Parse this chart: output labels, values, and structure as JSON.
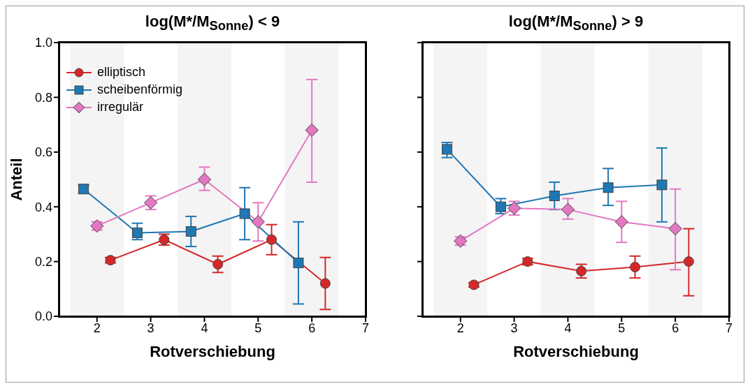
{
  "chart_data": [
    {
      "type": "line",
      "title": "log(M*/M$_{Sonne}$) < 9",
      "xlabel": "Rotverschiebung",
      "ylabel": "Anteil",
      "xlim": [
        1.3,
        7
      ],
      "xticks": [
        2,
        3,
        4,
        5,
        6,
        7
      ],
      "ylim": [
        0,
        1
      ],
      "yticks": [
        {
          "value": 0,
          "label": "0.0"
        },
        {
          "value": 0.2,
          "label": "0.2"
        },
        {
          "value": 0.4,
          "label": "0.4"
        },
        {
          "value": 0.6,
          "label": "0.6"
        },
        {
          "value": 0.8,
          "label": "0.8"
        },
        {
          "value": 1,
          "label": "1.0"
        }
      ],
      "grid": false,
      "legend": "top left",
      "bands": [
        {
          "axis": "x",
          "from": 1.5,
          "to": 2.5,
          "color": "#f4f4f4"
        },
        {
          "axis": "x",
          "from": 3.5,
          "to": 4.5,
          "color": "#f4f4f4"
        },
        {
          "axis": "x",
          "from": 5.5,
          "to": 6.5,
          "color": "#f4f4f4"
        }
      ],
      "series": [
        {
          "name": "elliptisch",
          "color": "#d62728",
          "marker": "circle",
          "x": [
            2.25,
            3.25,
            4.25,
            5.25,
            6.25
          ],
          "values": [
            0.205,
            0.28,
            0.19,
            0.28,
            0.12
          ],
          "errors": [
            0.01,
            0.02,
            [
              0.16,
              0.22
            ],
            [
              0.225,
              0.335
            ],
            [
              0.025,
              0.215
            ]
          ]
        },
        {
          "name": "scheibenförmig",
          "color": "#1f77b4",
          "marker": "square",
          "x": [
            1.75,
            2.75,
            3.75,
            4.75,
            5.75
          ],
          "values": [
            0.465,
            0.305,
            0.31,
            0.375,
            0.195
          ],
          "errors": [
            0.015,
            [
              0.28,
              0.34
            ],
            [
              0.255,
              0.365
            ],
            [
              0.28,
              0.47
            ],
            [
              0.045,
              0.345
            ]
          ]
        },
        {
          "name": "irregulär",
          "color": "#e377c2",
          "marker": "diamond",
          "x": [
            2,
            3,
            4,
            5,
            6
          ],
          "values": [
            0.33,
            0.415,
            0.5,
            0.345,
            0.68
          ],
          "errors": [
            0.015,
            [
              0.39,
              0.44
            ],
            [
              0.46,
              0.545
            ],
            [
              0.275,
              0.415
            ],
            [
              0.49,
              0.865
            ]
          ]
        }
      ]
    },
    {
      "type": "line",
      "title": "log(M*/M$_{Sonne}$) > 9",
      "xlabel": "Rotverschiebung",
      "xlim": [
        1.3,
        7
      ],
      "xticks": [
        2,
        3,
        4,
        5,
        6,
        7
      ],
      "ylim": [
        0,
        1
      ],
      "yticks": [
        0,
        0.2,
        0.4,
        0.6,
        0.8,
        1
      ],
      "grid": false,
      "tick_labels": "x",
      "bands": [
        {
          "axis": "x",
          "from": 1.5,
          "to": 2.5,
          "color": "#f4f4f4"
        },
        {
          "axis": "x",
          "from": 3.5,
          "to": 4.5,
          "color": "#f4f4f4"
        },
        {
          "axis": "x",
          "from": 5.5,
          "to": 6.5,
          "color": "#f4f4f4"
        }
      ],
      "series": [
        {
          "color": "#d62728",
          "marker": "circle",
          "x": [
            2.25,
            3.25,
            4.25,
            5.25,
            6.25
          ],
          "values": [
            0.115,
            0.2,
            0.165,
            0.18,
            0.2
          ],
          "errors": [
            0.008,
            0.012,
            [
              0.14,
              0.19
            ],
            [
              0.14,
              0.22
            ],
            [
              0.075,
              0.32
            ]
          ]
        },
        {
          "color": "#1f77b4",
          "marker": "square",
          "x": [
            1.75,
            2.75,
            3.75,
            4.75,
            5.75
          ],
          "values": [
            0.61,
            0.4,
            0.44,
            0.47,
            0.48
          ],
          "errors": [
            [
              0.58,
              0.635
            ],
            [
              0.375,
              0.43
            ],
            [
              0.39,
              0.49
            ],
            [
              0.405,
              0.54
            ],
            [
              0.345,
              0.615
            ]
          ]
        },
        {
          "color": "#e377c2",
          "marker": "diamond",
          "x": [
            2,
            3,
            4,
            5,
            6
          ],
          "values": [
            0.275,
            0.395,
            0.39,
            0.345,
            0.32
          ],
          "errors": [
            0.015,
            [
              0.37,
              0.42
            ],
            [
              0.355,
              0.43
            ],
            [
              0.27,
              0.42
            ],
            [
              0.17,
              0.465
            ]
          ]
        }
      ]
    }
  ]
}
